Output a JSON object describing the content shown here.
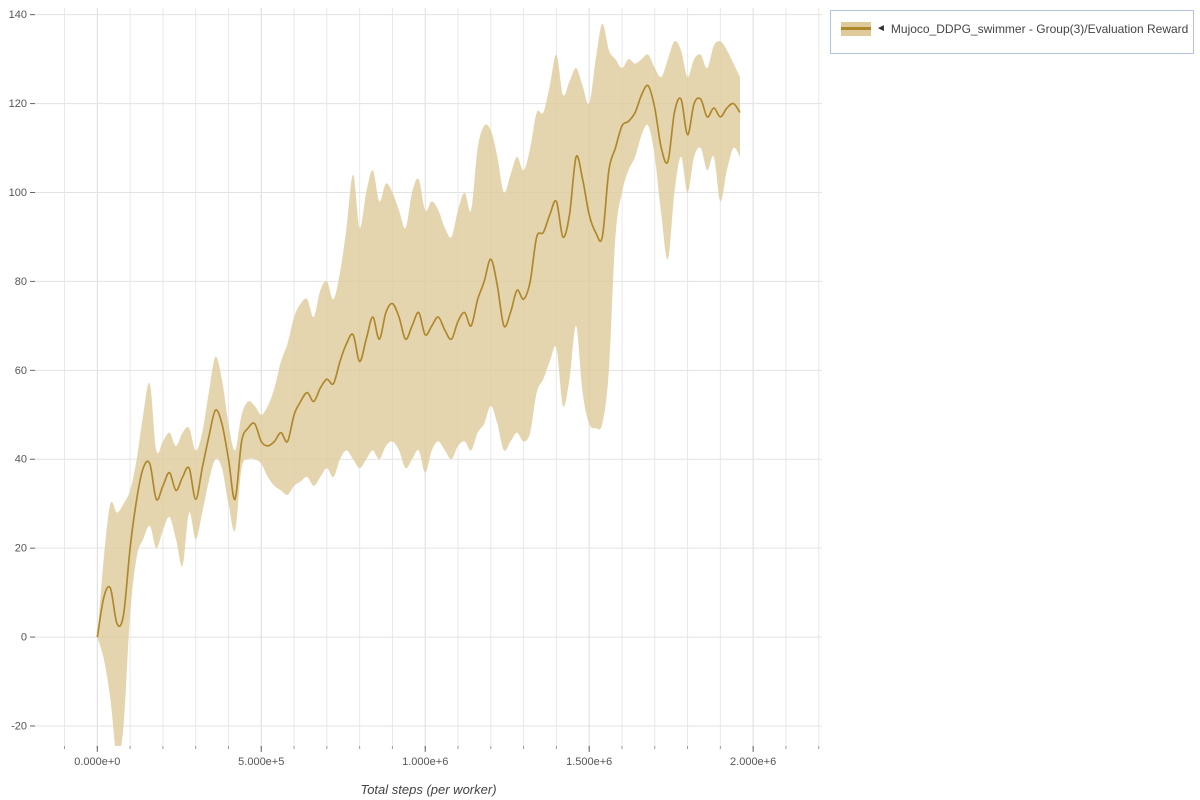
{
  "chart_data": {
    "type": "line",
    "title": "",
    "xlabel": "Total steps (per worker)",
    "ylabel": "",
    "grid": true,
    "legend_position": "top-right",
    "legend_marker": "◄",
    "xlim": [
      -190000,
      2210000
    ],
    "ylim": [
      -24.5,
      141.5
    ],
    "xticks": {
      "values": [
        0,
        500000,
        1000000,
        1500000,
        2000000
      ],
      "labels": [
        "0.000e+0",
        "5.000e+5",
        "1.000e+6",
        "1.500e+6",
        "2.000e+6"
      ]
    },
    "yticks": {
      "values": [
        -20,
        0,
        20,
        40,
        60,
        80,
        100,
        120,
        140
      ]
    },
    "colors": {
      "line": "#b0882c",
      "band": "#dfca9b",
      "grid": "#e7e7e7",
      "legend_border": "#b3c6de",
      "tick_text": "#555555"
    },
    "series": [
      {
        "name": "Mujoco_DDPG_swimmer - Group(3)/Evaluation Reward",
        "color": "#b0882c",
        "band_color": "#dfca9b",
        "x": [
          0,
          20000,
          40000,
          60000,
          80000,
          100000,
          120000,
          140000,
          160000,
          180000,
          200000,
          220000,
          240000,
          260000,
          280000,
          300000,
          320000,
          340000,
          360000,
          380000,
          400000,
          420000,
          440000,
          460000,
          480000,
          500000,
          520000,
          540000,
          560000,
          580000,
          600000,
          620000,
          640000,
          660000,
          680000,
          700000,
          720000,
          740000,
          760000,
          780000,
          800000,
          820000,
          840000,
          860000,
          880000,
          900000,
          920000,
          940000,
          960000,
          980000,
          1000000,
          1020000,
          1040000,
          1060000,
          1080000,
          1100000,
          1120000,
          1140000,
          1160000,
          1180000,
          1200000,
          1220000,
          1240000,
          1260000,
          1280000,
          1300000,
          1320000,
          1340000,
          1360000,
          1380000,
          1400000,
          1420000,
          1440000,
          1460000,
          1480000,
          1500000,
          1520000,
          1540000,
          1560000,
          1580000,
          1600000,
          1620000,
          1640000,
          1660000,
          1680000,
          1700000,
          1720000,
          1740000,
          1760000,
          1780000,
          1800000,
          1820000,
          1840000,
          1860000,
          1880000,
          1900000,
          1920000,
          1940000,
          1960000
        ],
        "mean": [
          0,
          9,
          11,
          3,
          5,
          20,
          31,
          38,
          39,
          31,
          34,
          37,
          33,
          36,
          38,
          31,
          38,
          45,
          51,
          48,
          40,
          31,
          44,
          47,
          48,
          44,
          43,
          44,
          46,
          44,
          50,
          53,
          55,
          53,
          56,
          58,
          57,
          62,
          66,
          68,
          62,
          67,
          72,
          67,
          73,
          75,
          72,
          67,
          70,
          73,
          68,
          70,
          72,
          69,
          67,
          71,
          73,
          70,
          76,
          80,
          85,
          79,
          70,
          73,
          78,
          76,
          80,
          90,
          91,
          95,
          98,
          90,
          95,
          108,
          103,
          95,
          91,
          90,
          105,
          110,
          115,
          116,
          118,
          122,
          124,
          119,
          110,
          107,
          118,
          121,
          113,
          120,
          121,
          117,
          119,
          117,
          119,
          120,
          118
        ],
        "lo": [
          0,
          -5,
          -14,
          -27,
          -20,
          5,
          18,
          22,
          25,
          20,
          24,
          27,
          22,
          16,
          28,
          22,
          28,
          35,
          40,
          38,
          30,
          24,
          38,
          40,
          40,
          39,
          36,
          34,
          33,
          32,
          34,
          35,
          36,
          34,
          36,
          38,
          36,
          40,
          42,
          40,
          38,
          40,
          42,
          40,
          43,
          44,
          42,
          38,
          40,
          42,
          37,
          42,
          44,
          42,
          40,
          43,
          44,
          42,
          46,
          48,
          52,
          48,
          42,
          44,
          46,
          44,
          46,
          55,
          58,
          62,
          65,
          52,
          58,
          70,
          55,
          48,
          47,
          48,
          60,
          90,
          100,
          105,
          108,
          113,
          115,
          108,
          95,
          85,
          100,
          108,
          100,
          108,
          110,
          105,
          108,
          98,
          105,
          110,
          108
        ],
        "hi": [
          0,
          18,
          30,
          28,
          30,
          33,
          40,
          50,
          57,
          42,
          44,
          46,
          43,
          46,
          47,
          42,
          46,
          55,
          63,
          58,
          48,
          42,
          50,
          53,
          52,
          50,
          52,
          56,
          62,
          66,
          72,
          75,
          76,
          72,
          78,
          80,
          76,
          82,
          92,
          104,
          92,
          100,
          105,
          98,
          102,
          100,
          96,
          92,
          100,
          103,
          96,
          98,
          96,
          92,
          90,
          96,
          100,
          96,
          110,
          115,
          114,
          108,
          100,
          104,
          108,
          105,
          110,
          118,
          118,
          124,
          131,
          122,
          125,
          128,
          124,
          120,
          130,
          138,
          132,
          130,
          128,
          130,
          129,
          130,
          131,
          128,
          126,
          130,
          134,
          132,
          126,
          130,
          131,
          128,
          133,
          134,
          132,
          129,
          126
        ]
      }
    ]
  }
}
